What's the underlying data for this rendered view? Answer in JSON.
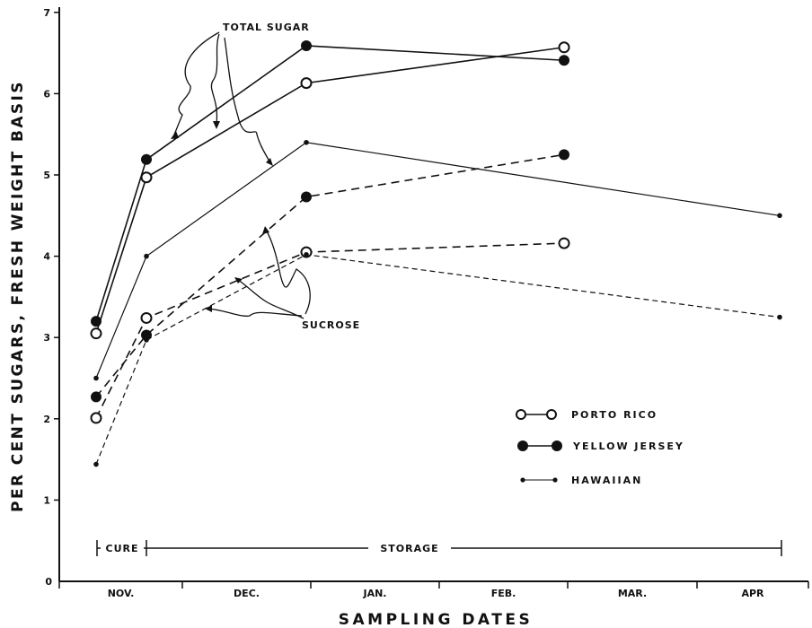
{
  "chart_data": {
    "type": "line",
    "xlabel": "SAMPLING DATES",
    "ylabel": "PER CENT SUGARS, FRESH WEIGHT BASIS",
    "ylim": [
      0,
      7
    ],
    "yticks": [
      "1",
      "2",
      "3",
      "4",
      "5",
      "6",
      "7"
    ],
    "month_labels": [
      "NOV.",
      "DEC.",
      "JAN.",
      "FEB.",
      "MAR.",
      "APR"
    ],
    "x_sampling_dates": [
      "Nov. early",
      "Nov. late",
      "Jan. early",
      "Mar. early",
      "Apr. late"
    ],
    "legend_position": "lower-right",
    "grid": false,
    "period_labels": {
      "cure": "CURE",
      "storage": "STORAGE"
    },
    "annotations": {
      "total_sugar": "TOTAL SUGAR",
      "sucrose": "SUCROSE"
    },
    "legend": [
      {
        "name": "PORTO RICO",
        "marker": "open-circle",
        "line": "solid"
      },
      {
        "name": "YELLOW JERSEY",
        "marker": "filled-circle",
        "line": "solid"
      },
      {
        "name": "HAWAIIAN",
        "marker": "small-dot",
        "line": "solid"
      }
    ],
    "series": [
      {
        "name": "PORTO RICO",
        "measure": "total sugar",
        "marker": "open",
        "dash": false,
        "points": [
          [
            0,
            3.05
          ],
          [
            1,
            4.97
          ],
          [
            2,
            6.13
          ],
          [
            3,
            6.57
          ]
        ]
      },
      {
        "name": "YELLOW JERSEY",
        "measure": "total sugar",
        "marker": "filled",
        "dash": false,
        "points": [
          [
            0,
            3.2
          ],
          [
            1,
            5.19
          ],
          [
            2,
            6.59
          ],
          [
            3,
            6.41
          ]
        ]
      },
      {
        "name": "HAWAIIAN",
        "measure": "total sugar",
        "marker": "dot",
        "dash": false,
        "points": [
          [
            0,
            2.5
          ],
          [
            1,
            4.0
          ],
          [
            2,
            5.4
          ],
          [
            4,
            4.5
          ]
        ]
      },
      {
        "name": "PORTO RICO",
        "measure": "sucrose",
        "marker": "open",
        "dash": true,
        "points": [
          [
            0,
            2.01
          ],
          [
            1,
            3.24
          ],
          [
            2,
            4.05
          ],
          [
            3,
            4.16
          ]
        ]
      },
      {
        "name": "YELLOW JERSEY",
        "measure": "sucrose",
        "marker": "filled",
        "dash": true,
        "points": [
          [
            0,
            2.27
          ],
          [
            1,
            3.03
          ],
          [
            2,
            4.73
          ],
          [
            3,
            5.25
          ]
        ]
      },
      {
        "name": "HAWAIIAN",
        "measure": "sucrose",
        "marker": "dot",
        "dash": true,
        "points": [
          [
            0,
            1.44
          ],
          [
            1,
            2.97
          ],
          [
            2,
            4.02
          ],
          [
            4,
            3.25
          ]
        ]
      }
    ]
  }
}
